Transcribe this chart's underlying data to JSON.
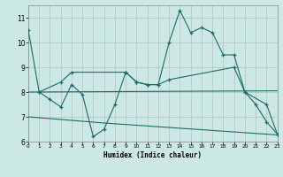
{
  "xlabel": "Humidex (Indice chaleur)",
  "bg_color": "#cce8e4",
  "line_color": "#1a6b6b",
  "grid_color": "#b0b0b0",
  "xlim": [
    0,
    23
  ],
  "ylim": [
    6,
    11.5
  ],
  "xticks": [
    0,
    1,
    2,
    3,
    4,
    5,
    6,
    7,
    8,
    9,
    10,
    11,
    12,
    13,
    14,
    15,
    16,
    17,
    18,
    19,
    20,
    21,
    22,
    23
  ],
  "yticks": [
    6,
    7,
    8,
    9,
    10,
    11
  ],
  "line1_x": [
    0,
    1,
    2,
    3,
    4,
    5,
    6,
    7,
    8,
    9,
    10,
    11,
    12,
    13,
    14,
    15,
    16,
    17,
    18,
    19,
    20,
    21,
    22,
    23
  ],
  "line1_y": [
    10.5,
    8.0,
    7.7,
    7.4,
    8.3,
    7.9,
    6.2,
    6.5,
    7.5,
    8.8,
    8.4,
    8.3,
    8.3,
    10.0,
    11.3,
    10.4,
    10.6,
    10.4,
    9.5,
    9.5,
    8.0,
    7.5,
    6.8,
    6.3
  ],
  "line2_x": [
    1,
    3,
    4,
    9,
    10,
    11,
    12,
    13,
    19,
    20,
    22,
    23
  ],
  "line2_y": [
    8.0,
    8.4,
    8.8,
    8.8,
    8.4,
    8.3,
    8.3,
    8.5,
    9.0,
    8.0,
    7.5,
    6.3
  ],
  "line3_x": [
    0,
    23
  ],
  "line3_y": [
    8.0,
    8.05
  ],
  "line4_x": [
    0,
    7,
    8,
    9,
    10,
    11,
    12,
    13,
    14,
    15,
    16,
    17,
    18,
    19,
    20,
    21,
    22,
    23
  ],
  "line4_y": [
    7.0,
    6.75,
    6.72,
    6.69,
    6.66,
    6.63,
    6.6,
    6.57,
    6.54,
    6.51,
    6.48,
    6.45,
    6.42,
    6.39,
    6.36,
    6.33,
    6.3,
    6.27
  ]
}
